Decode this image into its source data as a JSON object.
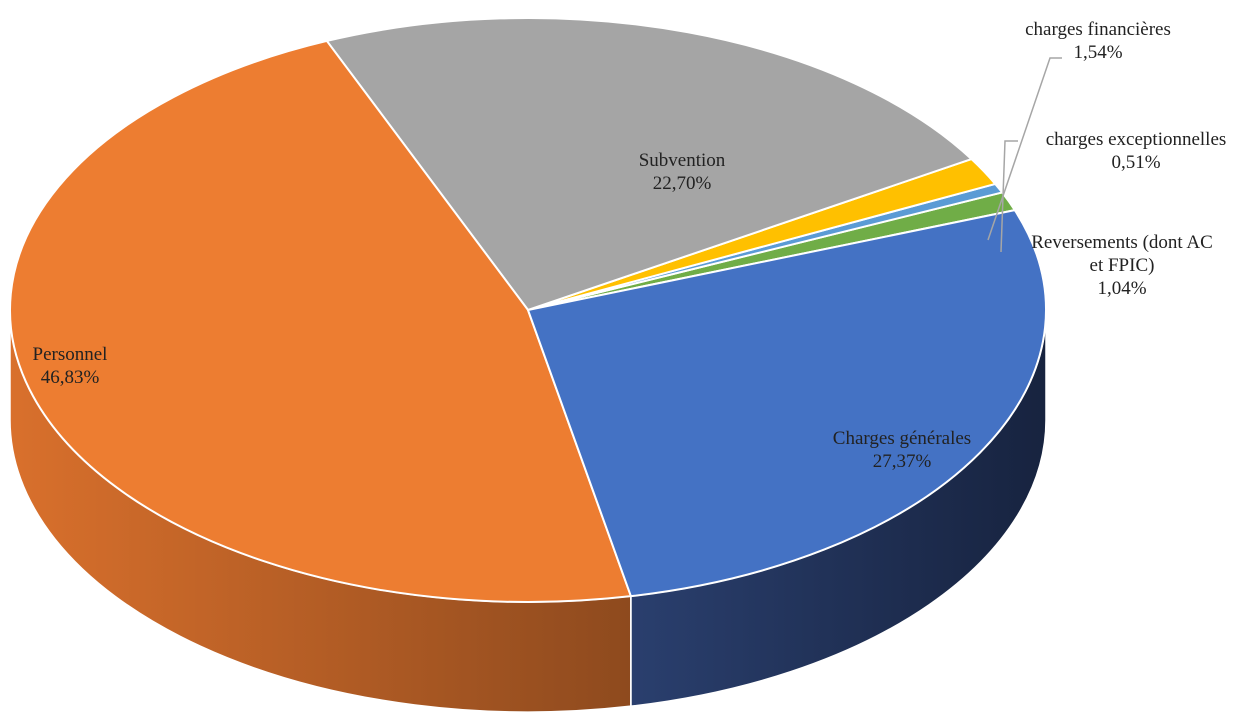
{
  "chart_data": {
    "type": "pie",
    "style": "3d-exploded-none",
    "title": "",
    "start_angle_deg": 20,
    "direction": "counterclockwise",
    "slices": [
      {
        "label": "Reversements (dont AC et FPIC)",
        "label_lines": [
          "Reversements (dont AC",
          "et FPIC)"
        ],
        "value_text": "1,04%",
        "value": 1.04,
        "color": "#70AD47",
        "side_color": "#3E6A24"
      },
      {
        "label": "charges exceptionnelles",
        "label_lines": [
          "charges exceptionnelles"
        ],
        "value_text": "0,51%",
        "value": 0.51,
        "color": "#5B9BD5",
        "side_color": "#2E5E8C"
      },
      {
        "label": "charges financières",
        "label_lines": [
          "charges financières"
        ],
        "value_text": "1,54%",
        "value": 1.54,
        "color": "#FFC000",
        "side_color": "#A67C00"
      },
      {
        "label": "Subvention",
        "label_lines": [
          "Subvention"
        ],
        "value_text": "22,70%",
        "value": 22.7,
        "color": "#A5A5A5",
        "side_color": "#6B6B6B"
      },
      {
        "label": "Personnel",
        "label_lines": [
          "Personnel"
        ],
        "value_text": "46,83%",
        "value": 46.83,
        "color": "#ED7D31",
        "side_color": "#B65E22"
      },
      {
        "label": "Charges générales",
        "label_lines": [
          "Charges générales"
        ],
        "value_text": "27,37%",
        "value": 27.37,
        "color": "#4472C4",
        "side_color": "#1D2D52"
      }
    ]
  }
}
